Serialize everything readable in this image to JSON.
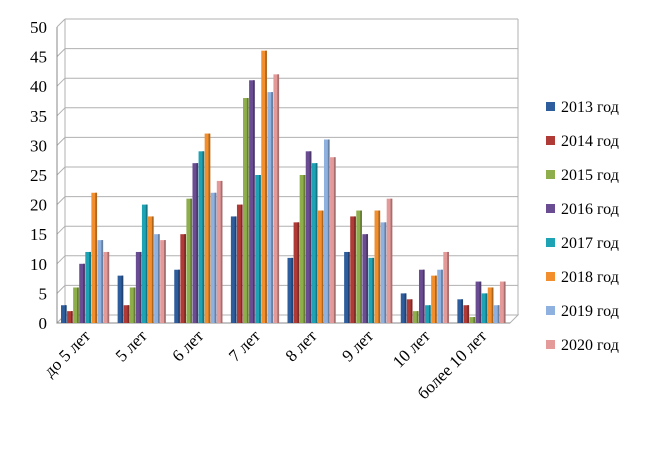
{
  "chart_data": {
    "type": "bar",
    "title": "",
    "xlabel": "",
    "ylabel": "",
    "ylim": [
      0,
      50
    ],
    "yticks": [
      0,
      5,
      10,
      15,
      20,
      25,
      30,
      35,
      40,
      45,
      50
    ],
    "grid": true,
    "legend_position": "right",
    "categories": [
      "до 5 лет",
      "5 лет",
      "6 лет",
      "7 лет",
      "8 лет",
      "9 лет",
      "10 лет",
      "более 10 лет"
    ],
    "series": [
      {
        "name": "2013 год",
        "color": "#2e5d9e",
        "values": [
          3,
          8,
          9,
          18,
          11,
          12,
          5,
          4
        ]
      },
      {
        "name": "2014 год",
        "color": "#b03a36",
        "values": [
          2,
          3,
          15,
          20,
          17,
          18,
          4,
          3
        ]
      },
      {
        "name": "2015 год",
        "color": "#8dae4b",
        "values": [
          6,
          6,
          21,
          38,
          25,
          19,
          2,
          1
        ]
      },
      {
        "name": "2016 год",
        "color": "#6a4c93",
        "values": [
          10,
          12,
          27,
          41,
          29,
          15,
          9,
          7
        ]
      },
      {
        "name": "2017 год",
        "color": "#1ea3b5",
        "values": [
          12,
          20,
          29,
          25,
          27,
          11,
          3,
          5
        ]
      },
      {
        "name": "2018 год",
        "color": "#f28e2b",
        "values": [
          22,
          18,
          32,
          46,
          19,
          19,
          8,
          6
        ]
      },
      {
        "name": "2019 год",
        "color": "#8fb1e0",
        "values": [
          14,
          15,
          22,
          39,
          31,
          17,
          9,
          3
        ]
      },
      {
        "name": "2020 год",
        "color": "#e59a9a",
        "values": [
          12,
          14,
          24,
          42,
          28,
          21,
          12,
          7
        ]
      }
    ]
  }
}
